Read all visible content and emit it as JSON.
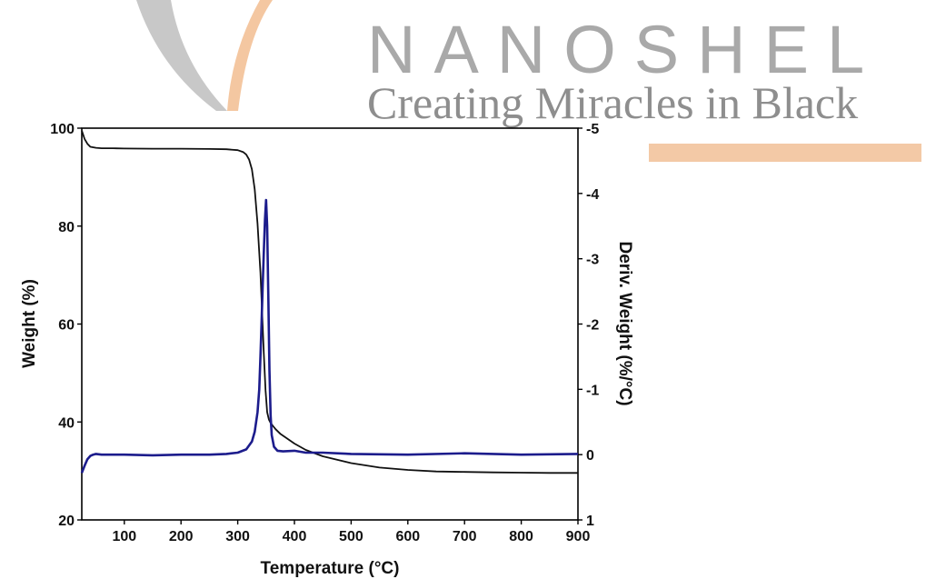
{
  "brand": {
    "name": "NANOSHEL",
    "tagline": "Creating Miracles in Black",
    "colors": {
      "name": "#a9a9a9",
      "tagline": "#8e8e8e",
      "swoosh_gray": "#c8c8c8",
      "swoosh_orange": "#f4c7a1",
      "bar": "#f3c9a6"
    }
  },
  "chart_data": {
    "type": "line",
    "title": "",
    "xlabel": "Temperature (°C)",
    "ylabel": "Weight (%)",
    "y2label": "Deriv. Weight (%/°C)",
    "xlim": [
      25,
      900
    ],
    "ylim": [
      20,
      100
    ],
    "y2lim": [
      1,
      -5
    ],
    "xticks": [
      100,
      200,
      300,
      400,
      500,
      600,
      700,
      800,
      900
    ],
    "yticks": [
      20,
      40,
      60,
      80,
      100
    ],
    "y2ticks": [
      1,
      0,
      -1,
      -2,
      -3,
      -4,
      -5
    ],
    "y2ticklabels": [
      "1",
      "0",
      "-1",
      "-2",
      "-3",
      "-4",
      "-5"
    ],
    "grid": false,
    "legend": "none",
    "series": [
      {
        "axis": "left",
        "color": "#111111",
        "x": [
          25,
          30,
          35,
          40,
          50,
          60,
          80,
          100,
          150,
          200,
          250,
          280,
          300,
          310,
          315,
          320,
          325,
          330,
          335,
          340,
          343,
          346,
          349,
          352,
          355,
          358,
          362,
          367,
          375,
          385,
          400,
          420,
          450,
          500,
          550,
          600,
          650,
          700,
          750,
          800,
          850,
          900
        ],
        "y": [
          99.5,
          97.8,
          96.8,
          96.2,
          96.0,
          95.9,
          95.9,
          95.85,
          95.8,
          95.8,
          95.75,
          95.7,
          95.5,
          95.1,
          94.6,
          93.6,
          91.6,
          87.5,
          80.5,
          70.5,
          62.5,
          54.0,
          46.5,
          42.0,
          40.5,
          39.8,
          39.2,
          38.5,
          37.6,
          36.8,
          35.6,
          34.3,
          33.0,
          31.6,
          30.7,
          30.2,
          29.9,
          29.8,
          29.7,
          29.65,
          29.6,
          29.6
        ]
      },
      {
        "axis": "right",
        "color": "#1c1c8c",
        "x": [
          25,
          30,
          35,
          40,
          45,
          50,
          60,
          100,
          150,
          200,
          250,
          280,
          300,
          315,
          325,
          330,
          335,
          338,
          340,
          342,
          344,
          346,
          348,
          350,
          352,
          354,
          356,
          358,
          360,
          364,
          370,
          380,
          400,
          420,
          450,
          500,
          600,
          700,
          800,
          900
        ],
        "y": [
          0.28,
          0.17,
          0.07,
          0.02,
          0.0,
          -0.01,
          0.0,
          0.0,
          0.01,
          0.0,
          0.0,
          -0.01,
          -0.03,
          -0.08,
          -0.2,
          -0.35,
          -0.65,
          -1.0,
          -1.5,
          -2.0,
          -2.6,
          -3.1,
          -3.6,
          -3.9,
          -3.5,
          -2.4,
          -1.3,
          -0.6,
          -0.3,
          -0.12,
          -0.06,
          -0.05,
          -0.06,
          -0.03,
          -0.03,
          -0.01,
          0.0,
          -0.02,
          0.0,
          -0.01
        ]
      }
    ]
  }
}
